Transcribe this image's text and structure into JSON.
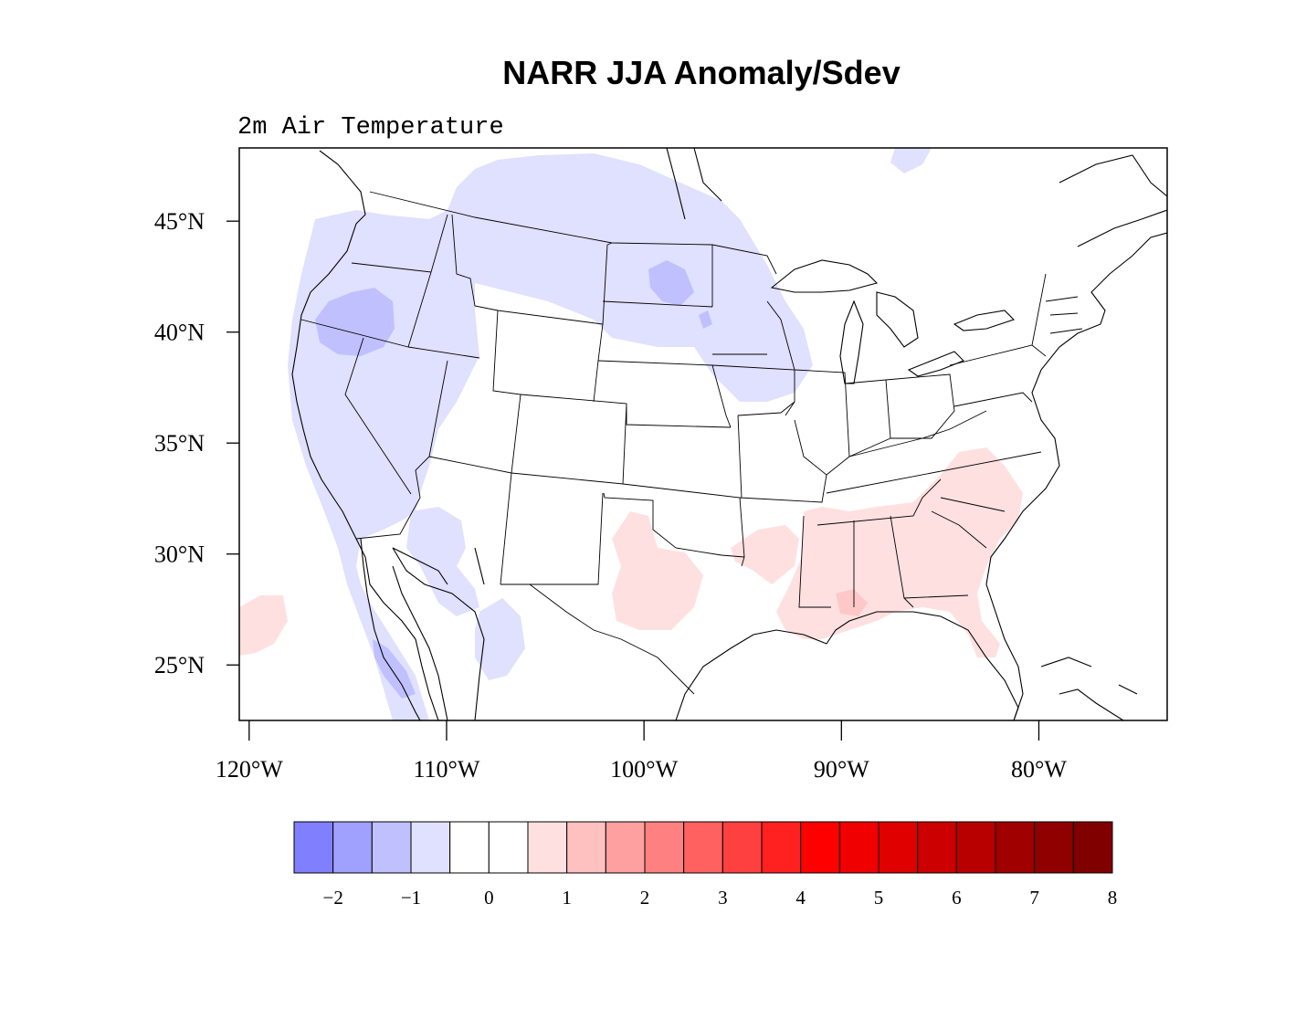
{
  "title": "NARR JJA Anomaly/Sdev",
  "subtitle": "2m Air Temperature",
  "map": {
    "lon_range": [
      -120.5,
      -73.5
    ],
    "lat_range": [
      22.5,
      48.3
    ],
    "lat_ticks": [
      {
        "value": 45,
        "label": "45°N"
      },
      {
        "value": 40,
        "label": "40°N"
      },
      {
        "value": 35,
        "label": "35°N"
      },
      {
        "value": 30,
        "label": "30°N"
      },
      {
        "value": 25,
        "label": "25°N"
      }
    ],
    "lon_ticks": [
      {
        "value": -120,
        "label": "120°W"
      },
      {
        "value": -110,
        "label": "110°W"
      },
      {
        "value": -100,
        "label": "100°W"
      },
      {
        "value": -90,
        "label": "90°W"
      },
      {
        "value": -80,
        "label": "80°W"
      }
    ]
  },
  "colorbar": {
    "colors": [
      "#8080ff",
      "#a0a0ff",
      "#c0c0ff",
      "#e0e0ff",
      "#ffffff",
      "#ffffff",
      "#ffe0e0",
      "#ffc0c0",
      "#ffa0a0",
      "#ff8080",
      "#ff6060",
      "#ff4040",
      "#ff2020",
      "#ff0000",
      "#f00000",
      "#e00000",
      "#cc0000",
      "#b80000",
      "#a00000",
      "#900000",
      "#800000"
    ],
    "labels": [
      {
        "index": 1,
        "label": "−2"
      },
      {
        "index": 3,
        "label": "−1"
      },
      {
        "index": 5,
        "label": "0"
      },
      {
        "index": 7,
        "label": "1"
      },
      {
        "index": 9,
        "label": "2"
      },
      {
        "index": 11,
        "label": "3"
      },
      {
        "index": 13,
        "label": "4"
      },
      {
        "index": 15,
        "label": "5"
      },
      {
        "index": 17,
        "label": "6"
      },
      {
        "index": 19,
        "label": "7"
      },
      {
        "index": 21,
        "label": "8"
      }
    ]
  },
  "anomaly_colors": {
    "cold_light": "#e0e0ff",
    "cold_medium": "#c0c0ff",
    "warm_light": "#ffe0e0",
    "warm_medium": "#ffc8c8"
  }
}
